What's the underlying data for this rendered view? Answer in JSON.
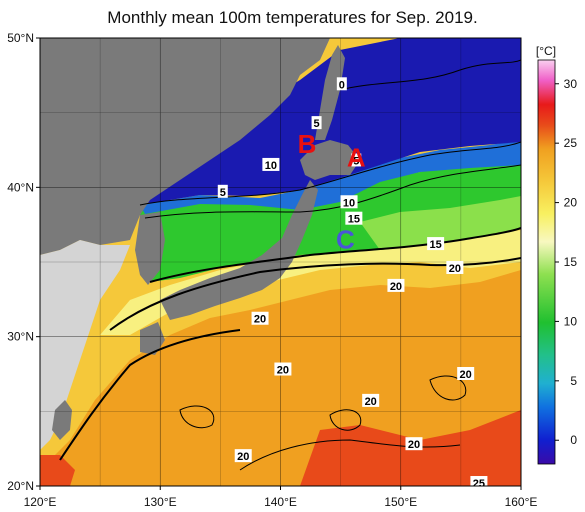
{
  "title": "Monthly mean 100m temperatures for Sep. 2019.",
  "map": {
    "lat_range": [
      20,
      50
    ],
    "lon_range": [
      120,
      160
    ],
    "lat_ticks": [
      {
        "value": 50,
        "label": "50°N"
      },
      {
        "value": 40,
        "label": "40°N"
      },
      {
        "value": 30,
        "label": "30°N"
      },
      {
        "value": 20,
        "label": "20°N"
      }
    ],
    "lon_ticks": [
      {
        "value": 120,
        "label": "120°E"
      },
      {
        "value": 130,
        "label": "130°E"
      },
      {
        "value": 140,
        "label": "140°E"
      },
      {
        "value": 150,
        "label": "150°E"
      },
      {
        "value": 160,
        "label": "160°E"
      }
    ],
    "contour_labels": [
      {
        "lon": 145.1,
        "lat": 46.9,
        "text": "0"
      },
      {
        "lon": 143.0,
        "lat": 44.3,
        "text": "5"
      },
      {
        "lon": 146.3,
        "lat": 41.8,
        "text": "5"
      },
      {
        "lon": 135.2,
        "lat": 39.7,
        "text": "5"
      },
      {
        "lon": 139.2,
        "lat": 41.5,
        "text": "10"
      },
      {
        "lon": 145.7,
        "lat": 39.0,
        "text": "10"
      },
      {
        "lon": 146.1,
        "lat": 37.9,
        "text": "15"
      },
      {
        "lon": 152.9,
        "lat": 36.2,
        "text": "15"
      },
      {
        "lon": 154.5,
        "lat": 34.6,
        "text": "20"
      },
      {
        "lon": 149.6,
        "lat": 33.4,
        "text": "20"
      },
      {
        "lon": 138.3,
        "lat": 31.2,
        "text": "20"
      },
      {
        "lon": 140.2,
        "lat": 27.8,
        "text": "20"
      },
      {
        "lon": 147.5,
        "lat": 25.7,
        "text": "20"
      },
      {
        "lon": 155.4,
        "lat": 27.5,
        "text": "20"
      },
      {
        "lon": 136.9,
        "lat": 22.0,
        "text": "20"
      },
      {
        "lon": 151.1,
        "lat": 22.8,
        "text": "20"
      },
      {
        "lon": 156.5,
        "lat": 20.2,
        "text": "25"
      }
    ],
    "markers": [
      {
        "text": "A",
        "lon": 146.3,
        "lat": 42.0,
        "color": "#e81010"
      },
      {
        "text": "B",
        "lon": 142.2,
        "lat": 42.9,
        "color": "#e81010"
      },
      {
        "text": "C",
        "lon": 145.4,
        "lat": 36.5,
        "color": "#4a55d8"
      }
    ]
  },
  "colorbar": {
    "unit": "[°C]",
    "ticks": [
      {
        "value": 30,
        "label": "30"
      },
      {
        "value": 25,
        "label": "25"
      },
      {
        "value": 20,
        "label": "20"
      },
      {
        "value": 15,
        "label": "15"
      },
      {
        "value": 10,
        "label": "10"
      },
      {
        "value": 5,
        "label": "5"
      },
      {
        "value": 0,
        "label": "0"
      }
    ],
    "min": -2,
    "max": 32
  },
  "colors": {
    "land": "#7a7a7a",
    "land_light": "#d4d4d4",
    "cold": "#1a1ab0",
    "cool": "#1f8fd8",
    "mid": "#2ec82e",
    "mild": "#8be04b",
    "warm_light": "#f5f57a",
    "warm": "#f5c83a",
    "hot": "#f09a20",
    "very_hot": "#e84a1a"
  }
}
